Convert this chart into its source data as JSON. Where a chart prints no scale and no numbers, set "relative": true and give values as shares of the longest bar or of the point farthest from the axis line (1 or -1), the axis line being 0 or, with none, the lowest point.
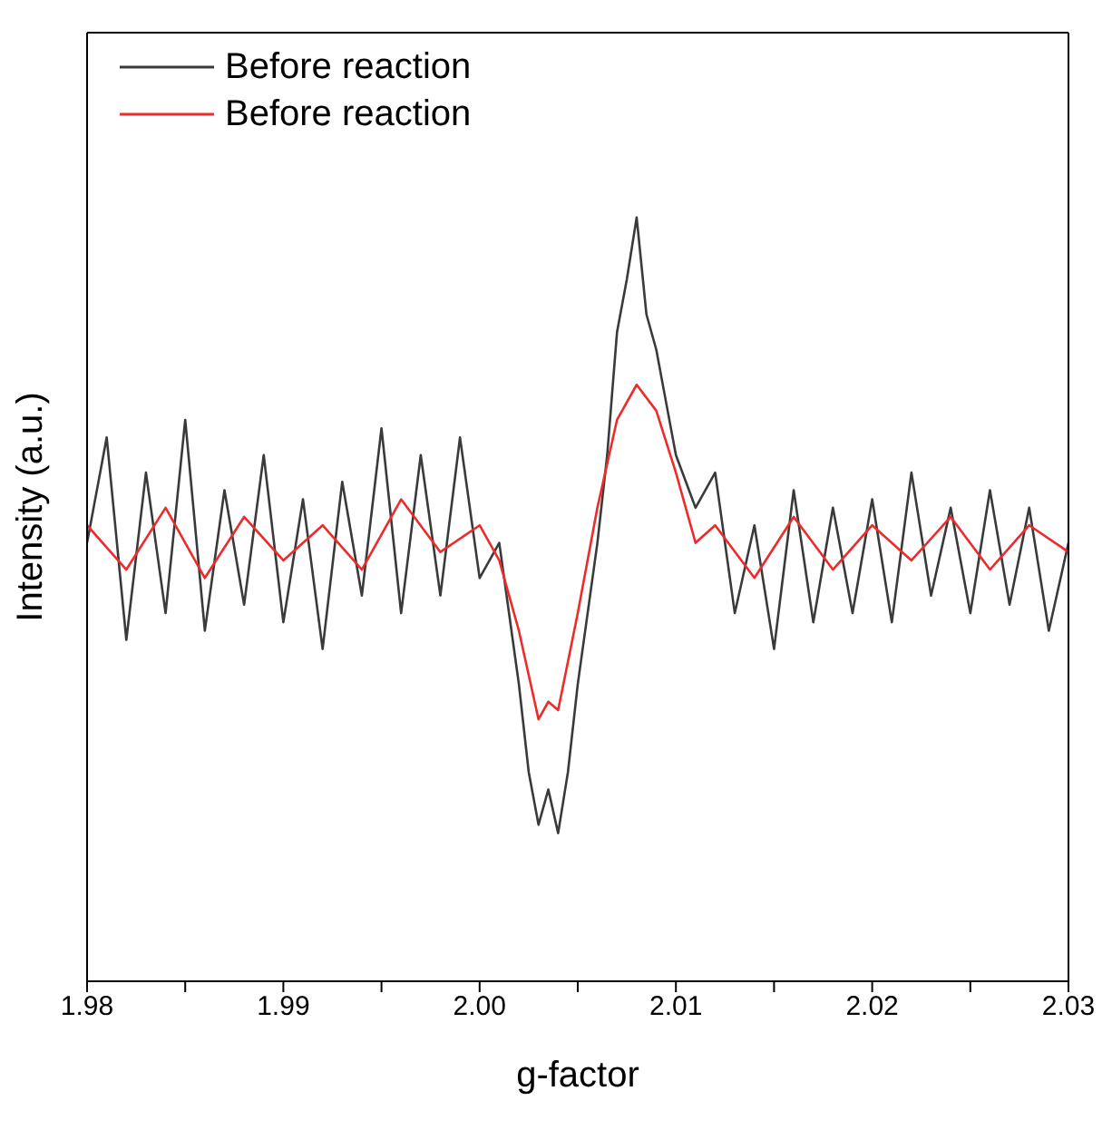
{
  "chart_data": {
    "type": "line",
    "xlabel": "g-factor",
    "ylabel": "Intensity (a.u.)",
    "relative": true,
    "tick_labels": "x",
    "legend": "top left",
    "marker": "none",
    "line_style": "solid",
    "xlim": [
      1.98,
      2.03
    ],
    "xticks": [
      {
        "value": 1.98,
        "label": "1.98"
      },
      {
        "value": 1.985,
        "label": null
      },
      {
        "value": 1.99,
        "label": "1.99"
      },
      {
        "value": 1.995,
        "label": null
      },
      {
        "value": 2.0,
        "label": "2.00"
      },
      {
        "value": 2.005,
        "label": null
      },
      {
        "value": 2.01,
        "label": "2.01"
      },
      {
        "value": 2.015,
        "label": null
      },
      {
        "value": 2.02,
        "label": "2.02"
      },
      {
        "value": 2.025,
        "label": null
      },
      {
        "value": 2.03,
        "label": "2.03"
      }
    ],
    "series": [
      {
        "name": "Before reaction",
        "color": "#3a3a3a",
        "x": [
          1.98,
          1.981,
          1.982,
          1.983,
          1.984,
          1.985,
          1.986,
          1.987,
          1.988,
          1.989,
          1.99,
          1.991,
          1.992,
          1.993,
          1.994,
          1.995,
          1.996,
          1.997,
          1.998,
          1.999,
          2.0,
          2.001,
          2.002,
          2.0025,
          2.003,
          2.0035,
          2.004,
          2.0045,
          2.005,
          2.006,
          2.0065,
          2.007,
          2.0075,
          2.008,
          2.0085,
          2.009,
          2.0095,
          2.01,
          2.011,
          2.012,
          2.013,
          2.014,
          2.015,
          2.016,
          2.017,
          2.018,
          2.019,
          2.02,
          2.021,
          2.022,
          2.023,
          2.024,
          2.025,
          2.026,
          2.027,
          2.028,
          2.029,
          2.03
        ],
        "values": [
          0.574,
          0.712,
          0.447,
          0.666,
          0.482,
          0.735,
          0.459,
          0.643,
          0.493,
          0.689,
          0.47,
          0.631,
          0.435,
          0.654,
          0.505,
          0.724,
          0.482,
          0.689,
          0.505,
          0.712,
          0.528,
          0.574,
          0.389,
          0.274,
          0.205,
          0.251,
          0.194,
          0.274,
          0.389,
          0.574,
          0.689,
          0.85,
          0.919,
          1,
          0.873,
          0.827,
          0.758,
          0.689,
          0.62,
          0.666,
          0.482,
          0.597,
          0.435,
          0.643,
          0.47,
          0.62,
          0.482,
          0.631,
          0.47,
          0.666,
          0.505,
          0.62,
          0.482,
          0.643,
          0.493,
          0.62,
          0.459,
          0.574
        ]
      },
      {
        "name": "Before reaction",
        "color": "#ee2b2b",
        "x": [
          1.98,
          1.982,
          1.984,
          1.986,
          1.988,
          1.99,
          1.992,
          1.994,
          1.996,
          1.998,
          2.0,
          2.001,
          2.002,
          2.003,
          2.0035,
          2.004,
          2.005,
          2.006,
          2.007,
          2.008,
          2.009,
          2.01,
          2.011,
          2.012,
          2.014,
          2.016,
          2.018,
          2.02,
          2.022,
          2.024,
          2.026,
          2.028,
          2.03
        ],
        "values": [
          0.597,
          0.539,
          0.62,
          0.528,
          0.608,
          0.551,
          0.597,
          0.539,
          0.631,
          0.562,
          0.597,
          0.551,
          0.459,
          0.343,
          0.366,
          0.355,
          0.482,
          0.62,
          0.735,
          0.781,
          0.747,
          0.666,
          0.574,
          0.597,
          0.528,
          0.608,
          0.539,
          0.597,
          0.551,
          0.608,
          0.539,
          0.597,
          0.562
        ]
      }
    ]
  }
}
